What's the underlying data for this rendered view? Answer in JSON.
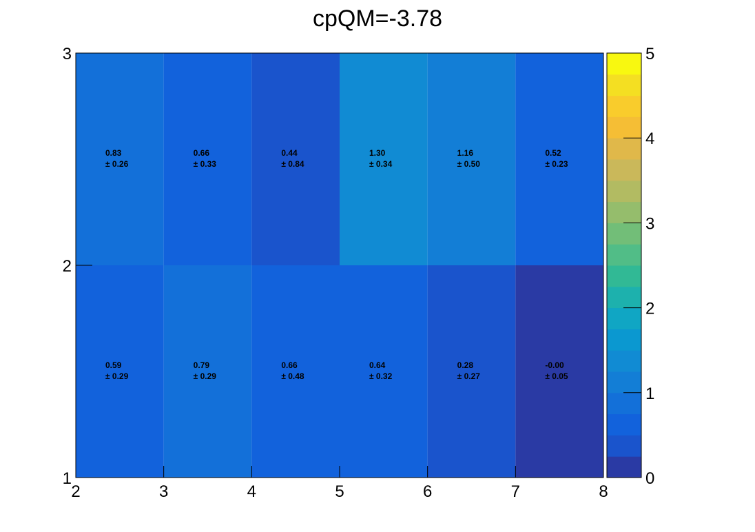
{
  "chart_data": {
    "type": "heatmap",
    "title": "cpQM=-3.78",
    "xlabel": "",
    "ylabel": "",
    "x_edges": [
      2,
      3,
      4,
      5,
      6,
      7,
      8
    ],
    "y_edges": [
      1,
      2,
      3
    ],
    "xlim": [
      2,
      8
    ],
    "ylim": [
      1,
      3
    ],
    "x_ticks": [
      "2",
      "3",
      "4",
      "5",
      "6",
      "7",
      "8"
    ],
    "y_ticks": [
      "1",
      "2",
      "3"
    ],
    "zlim": [
      0,
      5
    ],
    "z_ticks": [
      "0",
      "1",
      "2",
      "3",
      "4",
      "5"
    ],
    "cells": [
      {
        "row": 0,
        "col": 0,
        "value": 0.59,
        "error": 0.29,
        "label": "0.59",
        "error_label": "± 0.29"
      },
      {
        "row": 0,
        "col": 1,
        "value": 0.79,
        "error": 0.29,
        "label": "0.79",
        "error_label": "± 0.29"
      },
      {
        "row": 0,
        "col": 2,
        "value": 0.66,
        "error": 0.48,
        "label": "0.66",
        "error_label": "± 0.48"
      },
      {
        "row": 0,
        "col": 3,
        "value": 0.64,
        "error": 0.32,
        "label": "0.64",
        "error_label": "± 0.32"
      },
      {
        "row": 0,
        "col": 4,
        "value": 0.28,
        "error": 0.27,
        "label": "0.28",
        "error_label": "± 0.27"
      },
      {
        "row": 0,
        "col": 5,
        "value": 0.0,
        "error": 0.05,
        "label": "-0.00",
        "error_label": "± 0.05"
      },
      {
        "row": 1,
        "col": 0,
        "value": 0.83,
        "error": 0.26,
        "label": "0.83",
        "error_label": "± 0.26"
      },
      {
        "row": 1,
        "col": 1,
        "value": 0.66,
        "error": 0.33,
        "label": "0.66",
        "error_label": "± 0.33"
      },
      {
        "row": 1,
        "col": 2,
        "value": 0.44,
        "error": 0.84,
        "label": "0.44",
        "error_label": "± 0.84"
      },
      {
        "row": 1,
        "col": 3,
        "value": 1.3,
        "error": 0.34,
        "label": "1.30",
        "error_label": "± 0.34"
      },
      {
        "row": 1,
        "col": 4,
        "value": 1.16,
        "error": 0.5,
        "label": "1.16",
        "error_label": "± 0.50"
      },
      {
        "row": 1,
        "col": 5,
        "value": 0.52,
        "error": 0.23,
        "label": "0.52",
        "error_label": "± 0.23"
      }
    ],
    "palette": [
      "#2a3aa4",
      "#1a54cc",
      "#1262dc",
      "#1370d9",
      "#137ed6",
      "#118bd3",
      "#0b98d0",
      "#10a6c4",
      "#1db1ad",
      "#31b995",
      "#51bd87",
      "#72be78",
      "#95bd6c",
      "#b2bb62",
      "#cab85a",
      "#e0b84a",
      "#f5be35",
      "#f9cc2c",
      "#f4df22",
      "#f8f810"
    ],
    "grid": false,
    "legend": "colorbar-right"
  }
}
